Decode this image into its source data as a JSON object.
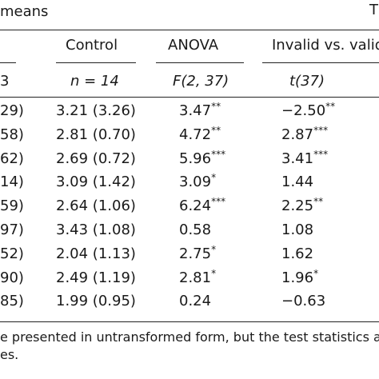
{
  "header": {
    "means_label": "means",
    "corner_label": "T",
    "columns": {
      "control": "Control",
      "anova": "ANOVA",
      "contrast": "Invalid vs. valid"
    },
    "subheader": {
      "left_fragment": "3",
      "control_n": "n = 14",
      "anova_df": "F(2, 37)",
      "contrast_df": "t(37)"
    }
  },
  "rows": [
    {
      "left": "29)",
      "control": "3.21 (3.26)",
      "anova": "3.47",
      "anova_sig": "**",
      "contrast": "−2.50",
      "contrast_sig": "**"
    },
    {
      "left": "58)",
      "control": "2.81 (0.70)",
      "anova": "4.72",
      "anova_sig": "**",
      "contrast": "2.87",
      "contrast_sig": "***"
    },
    {
      "left": "62)",
      "control": "2.69 (0.72)",
      "anova": "5.96",
      "anova_sig": "***",
      "contrast": "3.41",
      "contrast_sig": "***"
    },
    {
      "left": "14)",
      "control": "3.09 (1.42)",
      "anova": "3.09",
      "anova_sig": "*",
      "contrast": "1.44",
      "contrast_sig": ""
    },
    {
      "left": "59)",
      "control": "2.64 (1.06)",
      "anova": "6.24",
      "anova_sig": "***",
      "contrast": "2.25",
      "contrast_sig": "**"
    },
    {
      "left": "97)",
      "control": "3.43 (1.08)",
      "anova": "0.58",
      "anova_sig": "",
      "contrast": "1.08",
      "contrast_sig": ""
    },
    {
      "left": "52)",
      "control": "2.04 (1.13)",
      "anova": "2.75",
      "anova_sig": "*",
      "contrast": "1.62",
      "contrast_sig": ""
    },
    {
      "left": "90)",
      "control": "2.49 (1.19)",
      "anova": "2.81",
      "anova_sig": "*",
      "contrast": "1.96",
      "contrast_sig": "*"
    },
    {
      "left": "85)",
      "control": "1.99 (0.95)",
      "anova": "0.24",
      "anova_sig": "",
      "contrast": "−0.63",
      "contrast_sig": ""
    }
  ],
  "footnote": {
    "line1": "e presented in untransformed form, but the test statistics ar",
    "line2": "es."
  }
}
